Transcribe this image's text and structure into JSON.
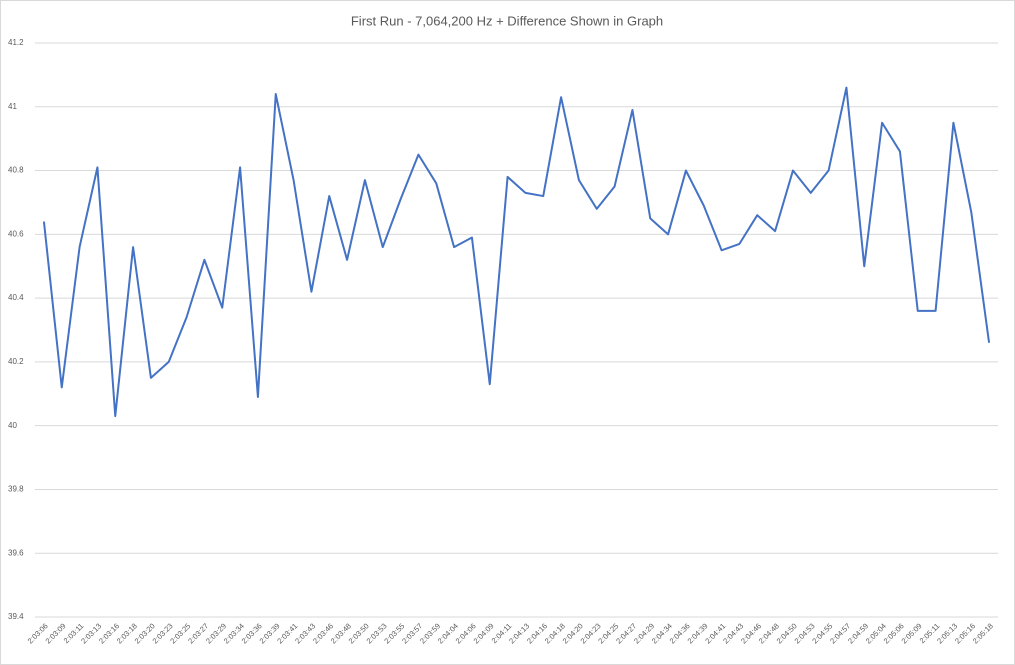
{
  "chart_data": {
    "type": "line",
    "title": "First Run - 7,064,200 Hz + Difference Shown in Graph",
    "categories": [
      "2:03:06",
      "2:03:09",
      "2:03:11",
      "2:03:13",
      "2:03:16",
      "2:03:18",
      "2:03:20",
      "2:03:23",
      "2:03:25",
      "2:03:27",
      "2:03:29",
      "2:03:34",
      "2:03:36",
      "2:03:39",
      "2:03:41",
      "2:03:43",
      "2:03:46",
      "2:03:48",
      "2:03:50",
      "2:03:53",
      "2:03:55",
      "2:03:57",
      "2:03:59",
      "2:04:04",
      "2:04:06",
      "2:04:09",
      "2:04:11",
      "2:04:13",
      "2:04:16",
      "2:04:18",
      "2:04:20",
      "2:04:23",
      "2:04:25",
      "2:04:27",
      "2:04:29",
      "2:04:34",
      "2:04:36",
      "2:04:39",
      "2:04:41",
      "2:04:43",
      "2:04:46",
      "2:04:48",
      "2:04:50",
      "2:04:53",
      "2:04:55",
      "2:04:57",
      "2:04:59",
      "2:05:04",
      "2:05:06",
      "2:05:09",
      "2:05:11",
      "2:05:13",
      "2:05:16",
      "2:05:18"
    ],
    "series": [
      {
        "color": "#4472c4",
        "values": [
          40.64,
          40.12,
          40.56,
          40.81,
          40.03,
          40.56,
          40.15,
          40.2,
          40.34,
          40.52,
          40.37,
          40.81,
          40.09,
          41.04,
          40.77,
          40.42,
          40.72,
          40.52,
          40.77,
          40.56,
          40.71,
          40.85,
          40.76,
          40.56,
          40.59,
          40.13,
          40.78,
          40.73,
          40.72,
          41.03,
          40.77,
          40.68,
          40.75,
          40.99,
          40.65,
          40.6,
          40.8,
          40.69,
          40.55,
          40.57,
          40.66,
          40.61,
          40.8,
          40.73,
          40.8,
          41.06,
          40.5,
          40.95,
          40.86,
          40.36,
          40.36,
          40.95,
          40.67,
          40.26
        ]
      }
    ],
    "ylim": [
      39.4,
      41.2
    ],
    "yticks": [
      39.4,
      39.6,
      39.8,
      40,
      40.2,
      40.4,
      40.6,
      40.8,
      41,
      41.2
    ],
    "grid": true
  }
}
